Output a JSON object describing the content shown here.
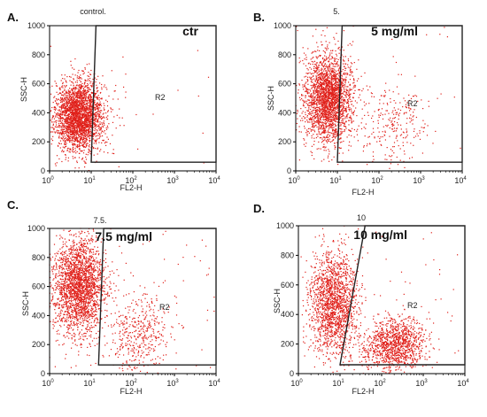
{
  "chart_data": [
    {
      "type": "scatter",
      "panel_label": "A.",
      "title": "control.",
      "annotation": "ctr",
      "xlabel": "FL2-H",
      "ylabel": "SSC-H",
      "xscale": "log",
      "xlim": [
        1,
        10000
      ],
      "ylim": [
        0,
        1000
      ],
      "x_ticks": [
        {
          "base": "10",
          "exp": "0"
        },
        {
          "base": "10",
          "exp": "1"
        },
        {
          "base": "10",
          "exp": "2"
        },
        {
          "base": "10",
          "exp": "3"
        },
        {
          "base": "10",
          "exp": "4"
        }
      ],
      "y_ticks": [
        "0",
        "200",
        "400",
        "600",
        "800",
        "1000"
      ],
      "gate": {
        "name": "R2",
        "polygon": [
          [
            10,
            60
          ],
          [
            13,
            1000
          ],
          [
            10000,
            1000
          ],
          [
            10000,
            60
          ]
        ]
      },
      "point_color": "#e0201a",
      "populations": [
        {
          "center_x": 5,
          "center_y": 380,
          "spread_log_x": 0.28,
          "spread_y": 120,
          "count": 2600
        },
        {
          "center_x": 15,
          "center_y": 330,
          "spread_log_x": 0.35,
          "spread_y": 150,
          "count": 110
        }
      ],
      "background_count": 18
    },
    {
      "type": "scatter",
      "panel_label": "B.",
      "title": "5.",
      "annotation": "5 mg/ml",
      "xlabel": "FL2-H",
      "ylabel": "SSC-H",
      "xscale": "log",
      "xlim": [
        1,
        10000
      ],
      "ylim": [
        0,
        1000
      ],
      "x_ticks": [
        {
          "base": "10",
          "exp": "0"
        },
        {
          "base": "10",
          "exp": "1"
        },
        {
          "base": "10",
          "exp": "2"
        },
        {
          "base": "10",
          "exp": "3"
        },
        {
          "base": "10",
          "exp": "4"
        }
      ],
      "y_ticks": [
        "0",
        "200",
        "400",
        "600",
        "800",
        "1000"
      ],
      "gate": {
        "name": "R2",
        "polygon": [
          [
            10,
            60
          ],
          [
            13,
            1000
          ],
          [
            10000,
            1000
          ],
          [
            10000,
            60
          ]
        ]
      },
      "point_color": "#e0201a",
      "populations": [
        {
          "center_x": 6,
          "center_y": 500,
          "spread_log_x": 0.28,
          "spread_y": 150,
          "count": 2400
        },
        {
          "center_x": 200,
          "center_y": 340,
          "spread_log_x": 0.45,
          "spread_y": 150,
          "count": 260
        }
      ],
      "background_count": 50
    },
    {
      "type": "scatter",
      "panel_label": "C.",
      "title": "7.5.",
      "annotation": "7.5 mg/ml",
      "xlabel": "FL2-H",
      "ylabel": "SSC-H",
      "xscale": "log",
      "xlim": [
        1,
        10000
      ],
      "ylim": [
        0,
        1000
      ],
      "x_ticks": [
        {
          "base": "10",
          "exp": "0"
        },
        {
          "base": "10",
          "exp": "1"
        },
        {
          "base": "10",
          "exp": "2"
        },
        {
          "base": "10",
          "exp": "3"
        },
        {
          "base": "10",
          "exp": "4"
        }
      ],
      "y_ticks": [
        "0",
        "200",
        "400",
        "600",
        "800",
        "1000"
      ],
      "gate": {
        "name": "R2",
        "polygon": [
          [
            15,
            60
          ],
          [
            20,
            1000
          ],
          [
            10000,
            1000
          ],
          [
            10000,
            60
          ]
        ]
      },
      "point_color": "#e0201a",
      "populations": [
        {
          "center_x": 5,
          "center_y": 600,
          "spread_log_x": 0.32,
          "spread_y": 170,
          "count": 2300
        },
        {
          "center_x": 150,
          "center_y": 280,
          "spread_log_x": 0.4,
          "spread_y": 140,
          "count": 420
        }
      ],
      "background_count": 60
    },
    {
      "type": "scatter",
      "panel_label": "D.",
      "title": "10",
      "annotation": "10 mg/ml",
      "xlabel": "FL2-H",
      "ylabel": "SSC-H",
      "xscale": "log",
      "xlim": [
        1,
        10000
      ],
      "ylim": [
        0,
        1000
      ],
      "x_ticks": [
        {
          "base": "10",
          "exp": "0"
        },
        {
          "base": "10",
          "exp": "1"
        },
        {
          "base": "10",
          "exp": "2"
        },
        {
          "base": "10",
          "exp": "3"
        },
        {
          "base": "10",
          "exp": "4"
        }
      ],
      "y_ticks": [
        "0",
        "200",
        "400",
        "600",
        "800",
        "1000"
      ],
      "gate": {
        "name": "R2",
        "polygon": [
          [
            10,
            60
          ],
          [
            40,
            1000
          ],
          [
            10000,
            1000
          ],
          [
            10000,
            60
          ]
        ]
      },
      "point_color": "#e0201a",
      "populations": [
        {
          "center_x": 7,
          "center_y": 480,
          "spread_log_x": 0.28,
          "spread_y": 180,
          "count": 1700
        },
        {
          "center_x": 250,
          "center_y": 200,
          "spread_log_x": 0.33,
          "spread_y": 90,
          "count": 900
        },
        {
          "center_x": 100,
          "center_y": 170,
          "spread_log_x": 0.3,
          "spread_y": 70,
          "count": 250
        }
      ],
      "background_count": 60
    }
  ]
}
